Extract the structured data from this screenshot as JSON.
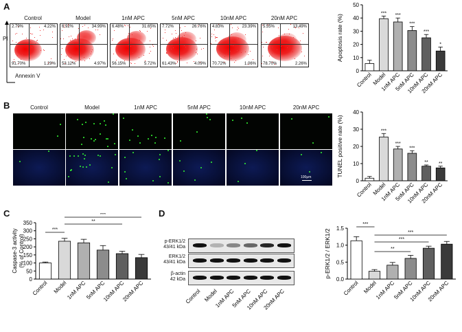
{
  "panels": {
    "a": "A",
    "b": "B",
    "c": "C",
    "d": "D"
  },
  "groups": [
    "Control",
    "Model",
    "1nM APC",
    "5nM APC",
    "10nM APC",
    "20nM APC"
  ],
  "flow": {
    "y_axis": "PI",
    "x_axis": "Annexin V",
    "quadrants": [
      {
        "ul": "2.79%",
        "ur": "4.22%",
        "ll": "91.70%",
        "lr": "1.29%"
      },
      {
        "ul": "6.92%",
        "ur": "34.99%",
        "ll": "53.12%",
        "lr": "4.97%"
      },
      {
        "ul": "6.48%",
        "ur": "31.65%",
        "ll": "56.15%",
        "lr": "5.72%"
      },
      {
        "ul": "7.72%",
        "ur": "26.76%",
        "ll": "61.43%",
        "lr": "4.09%"
      },
      {
        "ul": "4.83%",
        "ur": "23.39%",
        "ll": "70.72%",
        "lr": "1.06%"
      },
      {
        "ul": "5.55%",
        "ur": "13.49%",
        "ll": "78.70%",
        "lr": "2.26%"
      }
    ]
  },
  "tunel": {
    "scale_bar": "100μm"
  },
  "western": {
    "rows": [
      {
        "name": "p-ERK1/2",
        "size": "43/41 kDa"
      },
      {
        "name": "ERK1/2",
        "size": "43/41 kDa"
      },
      {
        "name": "β-actin",
        "size": "42 kDa"
      }
    ]
  },
  "chart_data": [
    {
      "type": "bar",
      "id": "apoptosis",
      "categories": [
        "Control",
        "Model",
        "1nM APC",
        "5nM APC",
        "10nM APC",
        "20nM APC"
      ],
      "values": [
        5.5,
        39.5,
        37,
        30.5,
        25,
        15
      ],
      "errors": [
        2.5,
        2,
        3,
        3,
        2.5,
        3
      ],
      "significance": [
        "",
        "***",
        "***",
        "***",
        "***",
        "*"
      ],
      "ylabel": "Apoptosis rate (%)",
      "ylim": [
        0,
        50
      ],
      "yticks": [
        0,
        10,
        20,
        30,
        40,
        50
      ],
      "colors": [
        "#ffffff",
        "#d9d9d9",
        "#b0b0b0",
        "#8c8c8c",
        "#5f5f5f",
        "#3a3a3a"
      ]
    },
    {
      "type": "bar",
      "id": "tunel",
      "categories": [
        "Control",
        "Model",
        "1nM APC",
        "5nM APC",
        "10nM APC",
        "20nM APC"
      ],
      "values": [
        1.5,
        25.5,
        18.5,
        16,
        8.5,
        7.5
      ],
      "errors": [
        1,
        2,
        1.5,
        1.5,
        0.7,
        1
      ],
      "significance": [
        "",
        "***",
        "***",
        "***",
        "**",
        "**"
      ],
      "ylabel": "TUNEL positive rate (%)",
      "ylim": [
        0,
        40
      ],
      "yticks": [
        0,
        10,
        20,
        30,
        40
      ],
      "colors": [
        "#ffffff",
        "#d9d9d9",
        "#b0b0b0",
        "#8c8c8c",
        "#5f5f5f",
        "#3a3a3a"
      ]
    },
    {
      "type": "bar",
      "id": "caspase",
      "categories": [
        "Control",
        "Model",
        "1nM APC",
        "5nM APC",
        "10nM APC",
        "20nM APC"
      ],
      "values": [
        100,
        235,
        225,
        180,
        158,
        133
      ],
      "errors": [
        6,
        18,
        22,
        28,
        15,
        20
      ],
      "brackets": [
        {
          "from": 1,
          "to": 4,
          "label": "**"
        },
        {
          "from": 1,
          "to": 5,
          "label": "***"
        },
        {
          "from": 0,
          "to": 1,
          "label": "***"
        }
      ],
      "ylabel": "Caspase-3 activity\n(% of Control)",
      "ylim": [
        0,
        350
      ],
      "yticks": [
        0,
        50,
        100,
        150,
        200,
        250,
        300,
        350
      ],
      "colors": [
        "#ffffff",
        "#d9d9d9",
        "#b0b0b0",
        "#8c8c8c",
        "#5f5f5f",
        "#3a3a3a"
      ]
    },
    {
      "type": "bar",
      "id": "erk",
      "categories": [
        "Control",
        "Model",
        "1nM APC",
        "5nM APC",
        "10nM APC",
        "20nM APC"
      ],
      "values": [
        1.13,
        0.23,
        0.41,
        0.61,
        0.91,
        1.03
      ],
      "errors": [
        0.12,
        0.05,
        0.08,
        0.09,
        0.06,
        0.08
      ],
      "brackets": [
        {
          "from": 0,
          "to": 1,
          "label": "***"
        },
        {
          "from": 1,
          "to": 3,
          "label": "**"
        },
        {
          "from": 1,
          "to": 4,
          "label": "***"
        },
        {
          "from": 1,
          "to": 5,
          "label": "***"
        }
      ],
      "ylabel": "p-ERK1/2 / ERK1/2",
      "ylim": [
        0,
        1.5
      ],
      "yticks": [
        0.0,
        0.5,
        1.0,
        1.5
      ],
      "colors": [
        "#ffffff",
        "#d9d9d9",
        "#b0b0b0",
        "#8c8c8c",
        "#5f5f5f",
        "#3a3a3a"
      ]
    }
  ]
}
